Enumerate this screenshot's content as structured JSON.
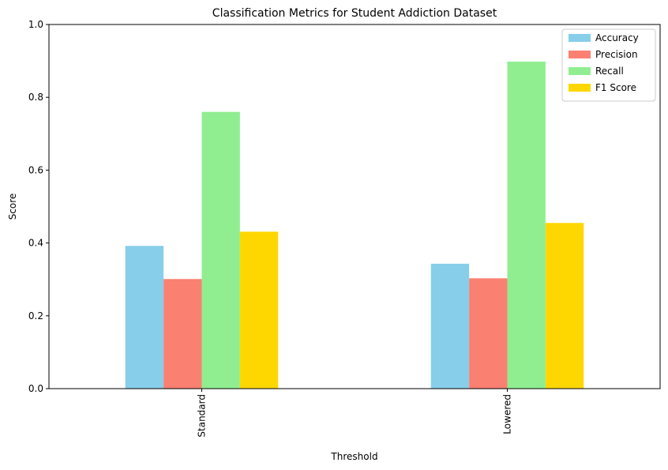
{
  "chart_data": {
    "type": "bar",
    "title": "Classification Metrics for Student Addiction Dataset",
    "xlabel": "Threshold",
    "ylabel": "Score",
    "ylim": [
      0,
      1.0
    ],
    "yticks": [
      "0.0",
      "0.2",
      "0.4",
      "0.6",
      "0.8",
      "1.0"
    ],
    "categories": [
      "Standard",
      "Lowered"
    ],
    "series": [
      {
        "name": "Accuracy",
        "color": "#87ceeb",
        "values": [
          0.392,
          0.343
        ]
      },
      {
        "name": "Precision",
        "color": "#fa8072",
        "values": [
          0.301,
          0.303
        ]
      },
      {
        "name": "Recall",
        "color": "#90ee90",
        "values": [
          0.76,
          0.898
        ]
      },
      {
        "name": "F1 Score",
        "color": "#ffd700",
        "values": [
          0.431,
          0.455
        ]
      }
    ],
    "legend_position": "top-right",
    "grid": false
  }
}
